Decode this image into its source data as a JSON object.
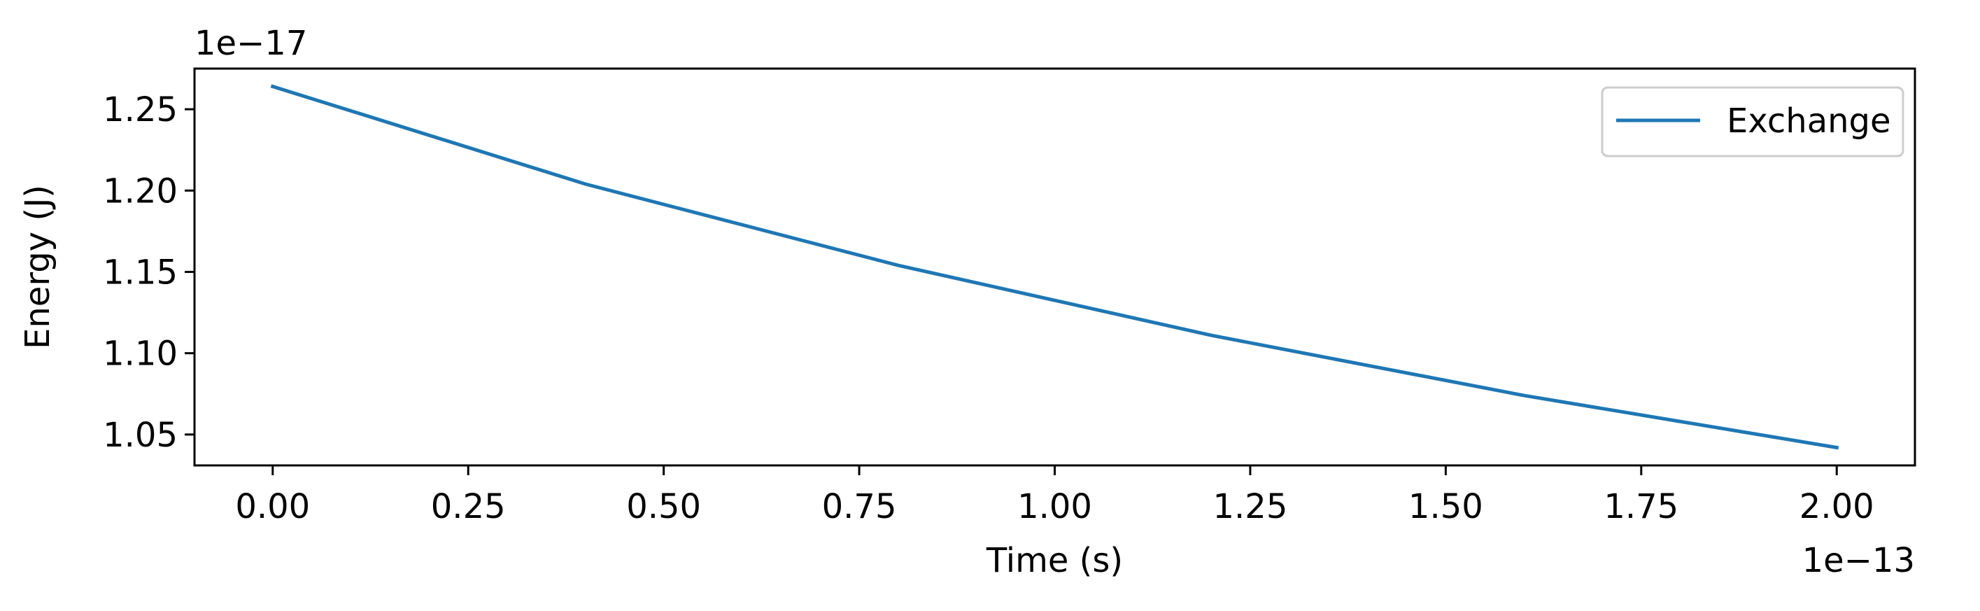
{
  "chart_data": {
    "type": "line",
    "xlabel": "Time (s)",
    "ylabel": "Energy (J)",
    "x_offset_text": "1e−13",
    "y_offset_text": "1e−17",
    "xlim": [
      -0.1,
      2.1
    ],
    "ylim": [
      1.031,
      1.275
    ],
    "x_ticks": [
      0.0,
      0.25,
      0.5,
      0.75,
      1.0,
      1.25,
      1.5,
      1.75,
      2.0
    ],
    "x_tick_labels": [
      "0.00",
      "0.25",
      "0.50",
      "0.75",
      "1.00",
      "1.25",
      "1.50",
      "1.75",
      "2.00"
    ],
    "y_ticks": [
      1.05,
      1.1,
      1.15,
      1.2,
      1.25
    ],
    "y_tick_labels": [
      "1.05",
      "1.10",
      "1.15",
      "1.20",
      "1.25"
    ],
    "grid": false,
    "legend_position": "top-right",
    "series": [
      {
        "name": "Exchange",
        "color": "#1f77b4",
        "x": [
          0.0,
          0.4,
          0.8,
          1.2,
          1.6,
          2.0
        ],
        "y": [
          1.264,
          1.204,
          1.154,
          1.111,
          1.074,
          1.042
        ]
      }
    ]
  }
}
